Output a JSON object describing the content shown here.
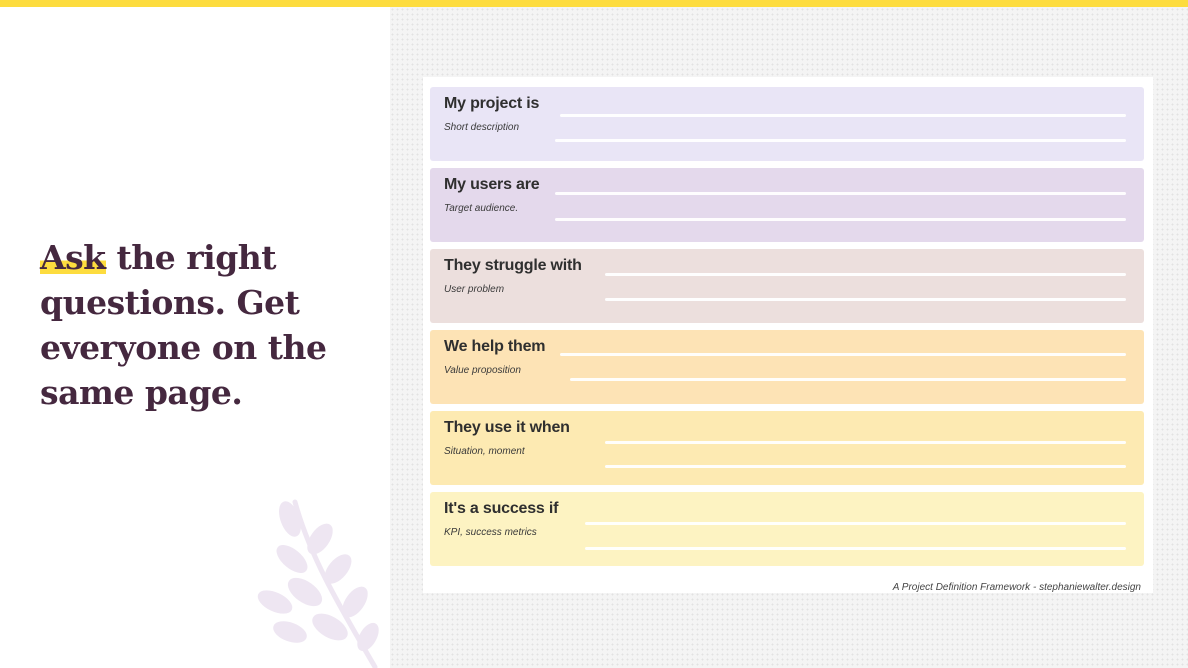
{
  "headline": {
    "highlight": "Ask",
    "rest": " the right questions. Get everyone on the same page."
  },
  "framework": {
    "rows": [
      {
        "label": "My project is",
        "sub": "Short description",
        "color": "#e9e5f6"
      },
      {
        "label": "My users are",
        "sub": "Target audience.",
        "color": "#e4d9ec"
      },
      {
        "label": "They struggle with",
        "sub": "User problem",
        "color": "#ecdfdd"
      },
      {
        "label": "We help them",
        "sub": "Value proposition",
        "color": "#fde3b5"
      },
      {
        "label": "They use it when",
        "sub": "Situation, moment",
        "color": "#fdeab2"
      },
      {
        "label": "It's a success if",
        "sub": "KPI, success metrics",
        "color": "#fdf3c2"
      }
    ],
    "credit": "A Project Definition Framework - stephaniewalter.design"
  },
  "colors": {
    "accent": "#fddc3e",
    "headline_text": "#45283f",
    "plant": "#eee6f2"
  }
}
